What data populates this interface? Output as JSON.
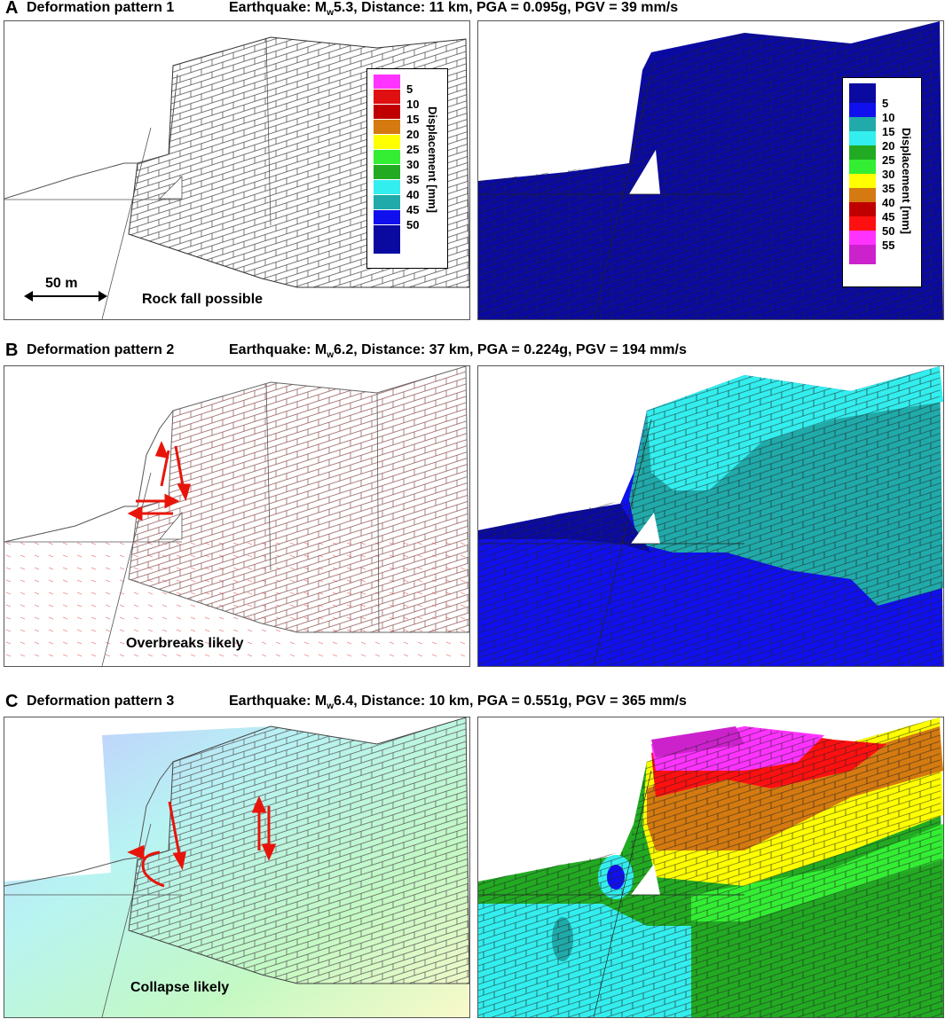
{
  "legend_title": "Displacement [mm]",
  "legend_left": {
    "labels": [
      "5",
      "10",
      "15",
      "20",
      "25",
      "30",
      "35",
      "40",
      "45",
      "50"
    ],
    "colors": [
      "#ff33ff",
      "#e01010",
      "#c00000",
      "#d47a10",
      "#ffff00",
      "#33ee33",
      "#22aa22",
      "#33eeee",
      "#20aaaa",
      "#1010ee",
      "#0a0aa0"
    ]
  },
  "legend_right": {
    "labels": [
      "5",
      "10",
      "15",
      "20",
      "25",
      "30",
      "35",
      "40",
      "45",
      "50",
      "55"
    ],
    "colors": [
      "#0a0aa0",
      "#1010ee",
      "#20aaaa",
      "#33eeee",
      "#22aa22",
      "#33ee33",
      "#ffff00",
      "#d47a10",
      "#c00000",
      "#ff1010",
      "#ff33ff",
      "#cc22cc"
    ]
  },
  "panels": [
    {
      "letter": "A",
      "title": "Deformation pattern 1",
      "eq_prefix": "Earthquake: M",
      "eq_sub": "w",
      "eq_rest": "5.3, Distance: 11 km, PGA = 0.095g, PGV = 39 mm/s",
      "annotation": "Rock fall possible",
      "scale_label": "50 m"
    },
    {
      "letter": "B",
      "title": "Deformation pattern 2",
      "eq_prefix": "Earthquake: M",
      "eq_sub": "w",
      "eq_rest": "6.2, Distance: 37 km, PGA = 0.224g, PGV = 194 mm/s",
      "annotation": "Overbreaks likely"
    },
    {
      "letter": "C",
      "title": "Deformation pattern 3",
      "eq_prefix": "Earthquake: M",
      "eq_sub": "w",
      "eq_rest": "6.4, Distance: 10 km, PGA = 0.551g, PGV = 365 mm/s",
      "annotation": "Collapse likely"
    }
  ],
  "colors": {
    "arrow_red": "#e8140a",
    "mesh_line": "#333333",
    "deep_blue": "#0a0aa0",
    "bright_blue": "#1010ee",
    "teal": "#20aaaa",
    "cyan": "#33eeee"
  }
}
